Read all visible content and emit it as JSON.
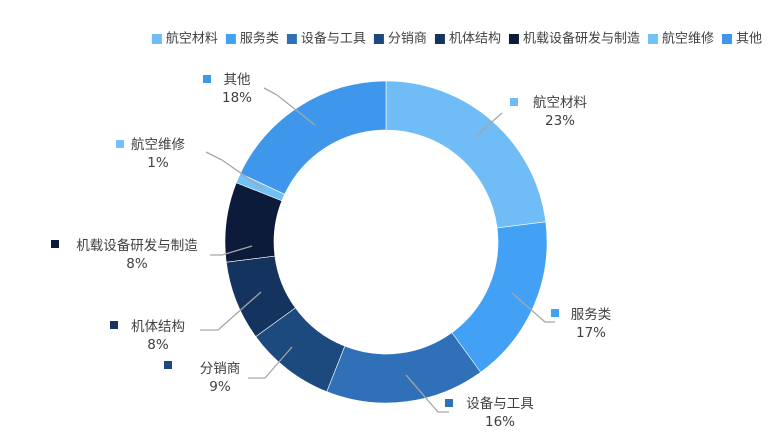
{
  "chart_data": {
    "type": "pie",
    "variant": "doughnut",
    "title": "",
    "legend_position": "top-right",
    "categories": [
      "航空材料",
      "服务类",
      "设备与工具",
      "分销商",
      "机体结构",
      "机载设备研发与制造",
      "航空维修",
      "其他"
    ],
    "values": [
      23,
      17,
      16,
      9,
      8,
      8,
      1,
      18
    ],
    "value_labels": [
      "23%",
      "17%",
      "16%",
      "9%",
      "8%",
      "8%",
      "1%",
      "18%"
    ],
    "colors": [
      "#6fbcf6",
      "#42a1f5",
      "#2f70b8",
      "#1c4a7e",
      "#14345f",
      "#0b1b39",
      "#72c0f8",
      "#3f97eb"
    ]
  }
}
